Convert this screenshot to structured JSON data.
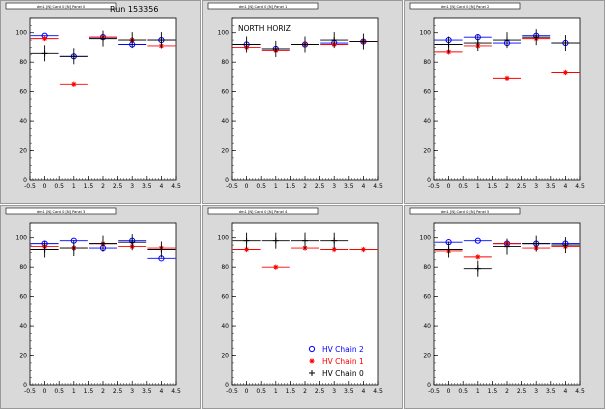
{
  "run_label": "Run 153356",
  "colors": {
    "chain2": "#0000ff",
    "chain1": "#ff0000",
    "chain0": "#000000",
    "pad_bg": "#d9d9d9",
    "frame_bg": "#ffffff",
    "axis": "#000000"
  },
  "legend": {
    "placement": "bottom-right of middle lower panel",
    "entries": [
      {
        "label": "HV Chain 2",
        "series": "chain2",
        "marker": "circle"
      },
      {
        "label": "HV Chain 1",
        "series": "chain1",
        "marker": "star"
      },
      {
        "label": "HV Chain 0",
        "series": "chain0",
        "marker": "cross"
      }
    ]
  },
  "chart_data": [
    {
      "type": "scatter",
      "tab": "dm1 [N] Card 0 [N] Panel 0",
      "annotation": "",
      "xlim": [
        -0.5,
        4.5
      ],
      "ylim": [
        0,
        110
      ],
      "xticks": [
        "-0.5",
        "0",
        "0.5",
        "1",
        "1.5",
        "2",
        "2.5",
        "3",
        "3.5",
        "4",
        "4.5"
      ],
      "yticks": [
        "0",
        "20",
        "40",
        "60",
        "80",
        "100"
      ],
      "series": [
        {
          "key": "chain2",
          "points": [
            [
              0,
              98
            ],
            [
              1,
              84
            ],
            [
              2,
              97
            ],
            [
              3,
              92
            ],
            [
              4,
              95
            ]
          ]
        },
        {
          "key": "chain1",
          "points": [
            [
              0,
              96
            ],
            [
              1,
              65
            ],
            [
              2,
              97
            ],
            [
              3,
              95
            ],
            [
              4,
              91
            ]
          ]
        },
        {
          "key": "chain0",
          "points": [
            [
              0,
              86
            ],
            [
              1,
              84
            ],
            [
              2,
              96
            ],
            [
              3,
              95
            ],
            [
              4,
              95
            ]
          ]
        }
      ]
    },
    {
      "type": "scatter",
      "tab": "dm1 [N] Card 0 [N] Panel 1",
      "annotation": "NORTH HORIZ",
      "xlim": [
        -0.5,
        4.5
      ],
      "ylim": [
        0,
        110
      ],
      "xticks": [
        "-0.5",
        "0",
        "0.5",
        "1",
        "1.5",
        "2",
        "2.5",
        "3",
        "3.5",
        "4",
        "4.5"
      ],
      "yticks": [
        "0",
        "20",
        "40",
        "60",
        "80",
        "100"
      ],
      "series": [
        {
          "key": "chain2",
          "points": [
            [
              0,
              92
            ],
            [
              1,
              89
            ],
            [
              2,
              92
            ],
            [
              3,
              93
            ],
            [
              4,
              94
            ]
          ]
        },
        {
          "key": "chain1",
          "points": [
            [
              0,
              90
            ],
            [
              1,
              88
            ],
            [
              2,
              92
            ],
            [
              3,
              92
            ],
            [
              4,
              94
            ]
          ]
        },
        {
          "key": "chain0",
          "points": [
            [
              0,
              92
            ],
            [
              1,
              89
            ],
            [
              2,
              92
            ],
            [
              3,
              95
            ],
            [
              4,
              94
            ]
          ]
        }
      ]
    },
    {
      "type": "scatter",
      "tab": "dm1 [N] Card 0 [N] Panel 2",
      "annotation": "",
      "xlim": [
        -0.5,
        4.5
      ],
      "ylim": [
        0,
        110
      ],
      "xticks": [
        "-0.5",
        "0",
        "0.5",
        "1",
        "1.5",
        "2",
        "2.5",
        "3",
        "3.5",
        "4",
        "4.5"
      ],
      "yticks": [
        "0",
        "20",
        "40",
        "60",
        "80",
        "100"
      ],
      "series": [
        {
          "key": "chain2",
          "points": [
            [
              0,
              95
            ],
            [
              1,
              97
            ],
            [
              2,
              93
            ],
            [
              3,
              98
            ],
            [
              4,
              93
            ]
          ]
        },
        {
          "key": "chain1",
          "points": [
            [
              0,
              87
            ],
            [
              1,
              91
            ],
            [
              2,
              69
            ],
            [
              3,
              96
            ],
            [
              4,
              73
            ]
          ]
        },
        {
          "key": "chain0",
          "points": [
            [
              0,
              92
            ],
            [
              1,
              93
            ],
            [
              2,
              95
            ],
            [
              3,
              97
            ],
            [
              4,
              93
            ]
          ]
        }
      ]
    },
    {
      "type": "scatter",
      "tab": "dm1 [N] Card 0 [N] Panel 3",
      "annotation": "",
      "xlim": [
        -0.5,
        4.5
      ],
      "ylim": [
        0,
        110
      ],
      "xticks": [
        "-0.5",
        "0",
        "0.5",
        "1",
        "1.5",
        "2",
        "2.5",
        "3",
        "3.5",
        "4",
        "4.5"
      ],
      "yticks": [
        "0",
        "20",
        "40",
        "60",
        "80",
        "100"
      ],
      "series": [
        {
          "key": "chain2",
          "points": [
            [
              0,
              96
            ],
            [
              1,
              98
            ],
            [
              2,
              93
            ],
            [
              3,
              98
            ],
            [
              4,
              86
            ]
          ]
        },
        {
          "key": "chain1",
          "points": [
            [
              0,
              94
            ],
            [
              1,
              93
            ],
            [
              2,
              96
            ],
            [
              3,
              94
            ],
            [
              4,
              93
            ]
          ]
        },
        {
          "key": "chain0",
          "points": [
            [
              0,
              92
            ],
            [
              1,
              93
            ],
            [
              2,
              96
            ],
            [
              3,
              97
            ],
            [
              4,
              92
            ]
          ]
        }
      ]
    },
    {
      "type": "scatter",
      "tab": "dm1 [N] Card 0 [N] Panel 4",
      "annotation": "",
      "xlim": [
        -0.5,
        4.5
      ],
      "ylim": [
        0,
        110
      ],
      "xticks": [
        "-0.5",
        "0",
        "0.5",
        "1",
        "1.5",
        "2",
        "2.5",
        "3",
        "3.5",
        "4",
        "4.5"
      ],
      "yticks": [
        "0",
        "20",
        "40",
        "60",
        "80",
        "100"
      ],
      "series": [
        {
          "key": "chain1",
          "points": [
            [
              0,
              92
            ],
            [
              1,
              80
            ],
            [
              2,
              93
            ],
            [
              3,
              92
            ],
            [
              4,
              92
            ]
          ]
        },
        {
          "key": "chain0",
          "points": [
            [
              0,
              98
            ],
            [
              1,
              98
            ],
            [
              2,
              98
            ],
            [
              3,
              98
            ]
          ]
        }
      ]
    },
    {
      "type": "scatter",
      "tab": "dm1 [N] Card 0 [N] Panel 5",
      "annotation": "",
      "xlim": [
        -0.5,
        4.5
      ],
      "ylim": [
        0,
        110
      ],
      "xticks": [
        "-0.5",
        "0",
        "0.5",
        "1",
        "1.5",
        "2",
        "2.5",
        "3",
        "3.5",
        "4",
        "4.5"
      ],
      "yticks": [
        "0",
        "20",
        "40",
        "60",
        "80",
        "100"
      ],
      "series": [
        {
          "key": "chain2",
          "points": [
            [
              0,
              97
            ],
            [
              1,
              98
            ],
            [
              2,
              96
            ],
            [
              3,
              96
            ],
            [
              4,
              96
            ]
          ]
        },
        {
          "key": "chain1",
          "points": [
            [
              0,
              91
            ],
            [
              1,
              87
            ],
            [
              2,
              96
            ],
            [
              3,
              93
            ],
            [
              4,
              94
            ]
          ]
        },
        {
          "key": "chain0",
          "points": [
            [
              0,
              92
            ],
            [
              1,
              79
            ],
            [
              2,
              94
            ],
            [
              3,
              96
            ],
            [
              4,
              95
            ]
          ]
        }
      ]
    }
  ]
}
